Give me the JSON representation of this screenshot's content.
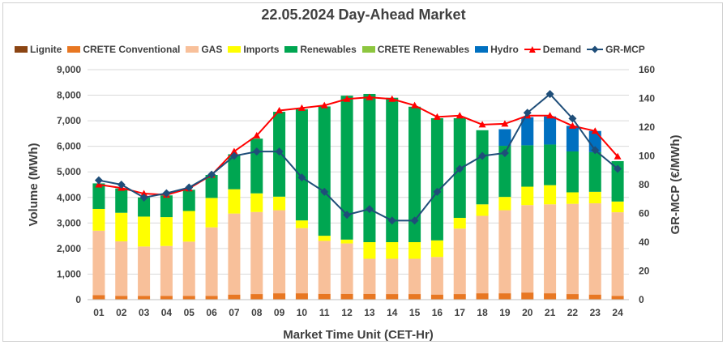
{
  "chart_data": {
    "type": "bar",
    "title": "22.05.2024  Day-Ahead Market",
    "xlabel": "Market Time Unit (CET-Hr)",
    "ylabel": "Volume (MWh)",
    "y2label": "GR-MCP (€/MWh)",
    "ylim": [
      0,
      9000
    ],
    "y2lim": [
      0,
      160
    ],
    "yticks": [
      "0",
      "1,000",
      "2,000",
      "3,000",
      "4,000",
      "5,000",
      "6,000",
      "7,000",
      "8,000",
      "9,000"
    ],
    "y2ticks": [
      "0",
      "20",
      "40",
      "60",
      "80",
      "100",
      "120",
      "140",
      "160"
    ],
    "grid": true,
    "legend_position": "top",
    "categories": [
      "01",
      "02",
      "03",
      "04",
      "05",
      "06",
      "07",
      "08",
      "09",
      "10",
      "11",
      "12",
      "13",
      "14",
      "15",
      "16",
      "17",
      "18",
      "19",
      "20",
      "21",
      "22",
      "23",
      "24"
    ],
    "stack_series": [
      {
        "name": "Lignite",
        "color": "#8B4513",
        "values": [
          0,
          0,
          0,
          0,
          0,
          0,
          0,
          0,
          0,
          0,
          0,
          0,
          0,
          0,
          0,
          0,
          0,
          0,
          0,
          0,
          0,
          0,
          0,
          0
        ]
      },
      {
        "name": "CRETE Conventional",
        "color": "#E87722",
        "values": [
          180,
          150,
          150,
          150,
          150,
          150,
          200,
          220,
          250,
          250,
          230,
          230,
          230,
          220,
          220,
          200,
          220,
          250,
          250,
          280,
          250,
          220,
          200,
          150
        ]
      },
      {
        "name": "GAS",
        "color": "#F8C09A",
        "values": [
          2520,
          2130,
          1930,
          1950,
          2120,
          2680,
          3170,
          3210,
          3250,
          2550,
          2070,
          1970,
          1370,
          1380,
          1380,
          1470,
          2560,
          3030,
          3250,
          3420,
          3480,
          3530,
          3570,
          3270
        ]
      },
      {
        "name": "Imports",
        "color": "#FFFF00",
        "values": [
          850,
          1120,
          1170,
          1130,
          1200,
          1150,
          950,
          730,
          530,
          300,
          200,
          150,
          650,
          650,
          650,
          650,
          420,
          450,
          520,
          720,
          750,
          450,
          450,
          420
        ]
      },
      {
        "name": "Renewables",
        "color": "#00A651",
        "values": [
          1000,
          950,
          750,
          850,
          830,
          900,
          1370,
          2140,
          3320,
          4350,
          5060,
          5630,
          5800,
          5650,
          5300,
          4780,
          3900,
          2900,
          2000,
          1620,
          1590,
          1600,
          1550,
          1580
        ]
      },
      {
        "name": "CRETE Renewables",
        "color": "#8DC63F",
        "values": [
          0,
          0,
          0,
          0,
          0,
          0,
          0,
          0,
          0,
          0,
          0,
          0,
          0,
          0,
          0,
          0,
          0,
          0,
          0,
          0,
          0,
          0,
          0,
          0
        ]
      },
      {
        "name": "Hydro",
        "color": "#0070C0",
        "values": [
          0,
          0,
          0,
          0,
          0,
          0,
          0,
          0,
          0,
          0,
          0,
          0,
          0,
          0,
          0,
          0,
          0,
          0,
          650,
          1100,
          1100,
          1000,
          830,
          0
        ]
      }
    ],
    "line_series": [
      {
        "name": "Demand",
        "color": "#FF0000",
        "axis": "left",
        "values": [
          4500,
          4370,
          4150,
          4100,
          4350,
          4880,
          5800,
          6420,
          7400,
          7500,
          7600,
          7850,
          7920,
          7850,
          7600,
          7150,
          7200,
          6850,
          6880,
          7200,
          7200,
          6800,
          6600,
          5600
        ]
      },
      {
        "name": "GR-MCP",
        "color": "#1F4E79",
        "axis": "right",
        "values": [
          83,
          80,
          71,
          74,
          78,
          87,
          100,
          103,
          103,
          85,
          75,
          59,
          63,
          55,
          55,
          75,
          91,
          100,
          102,
          130,
          143,
          126,
          104,
          91
        ]
      }
    ]
  }
}
